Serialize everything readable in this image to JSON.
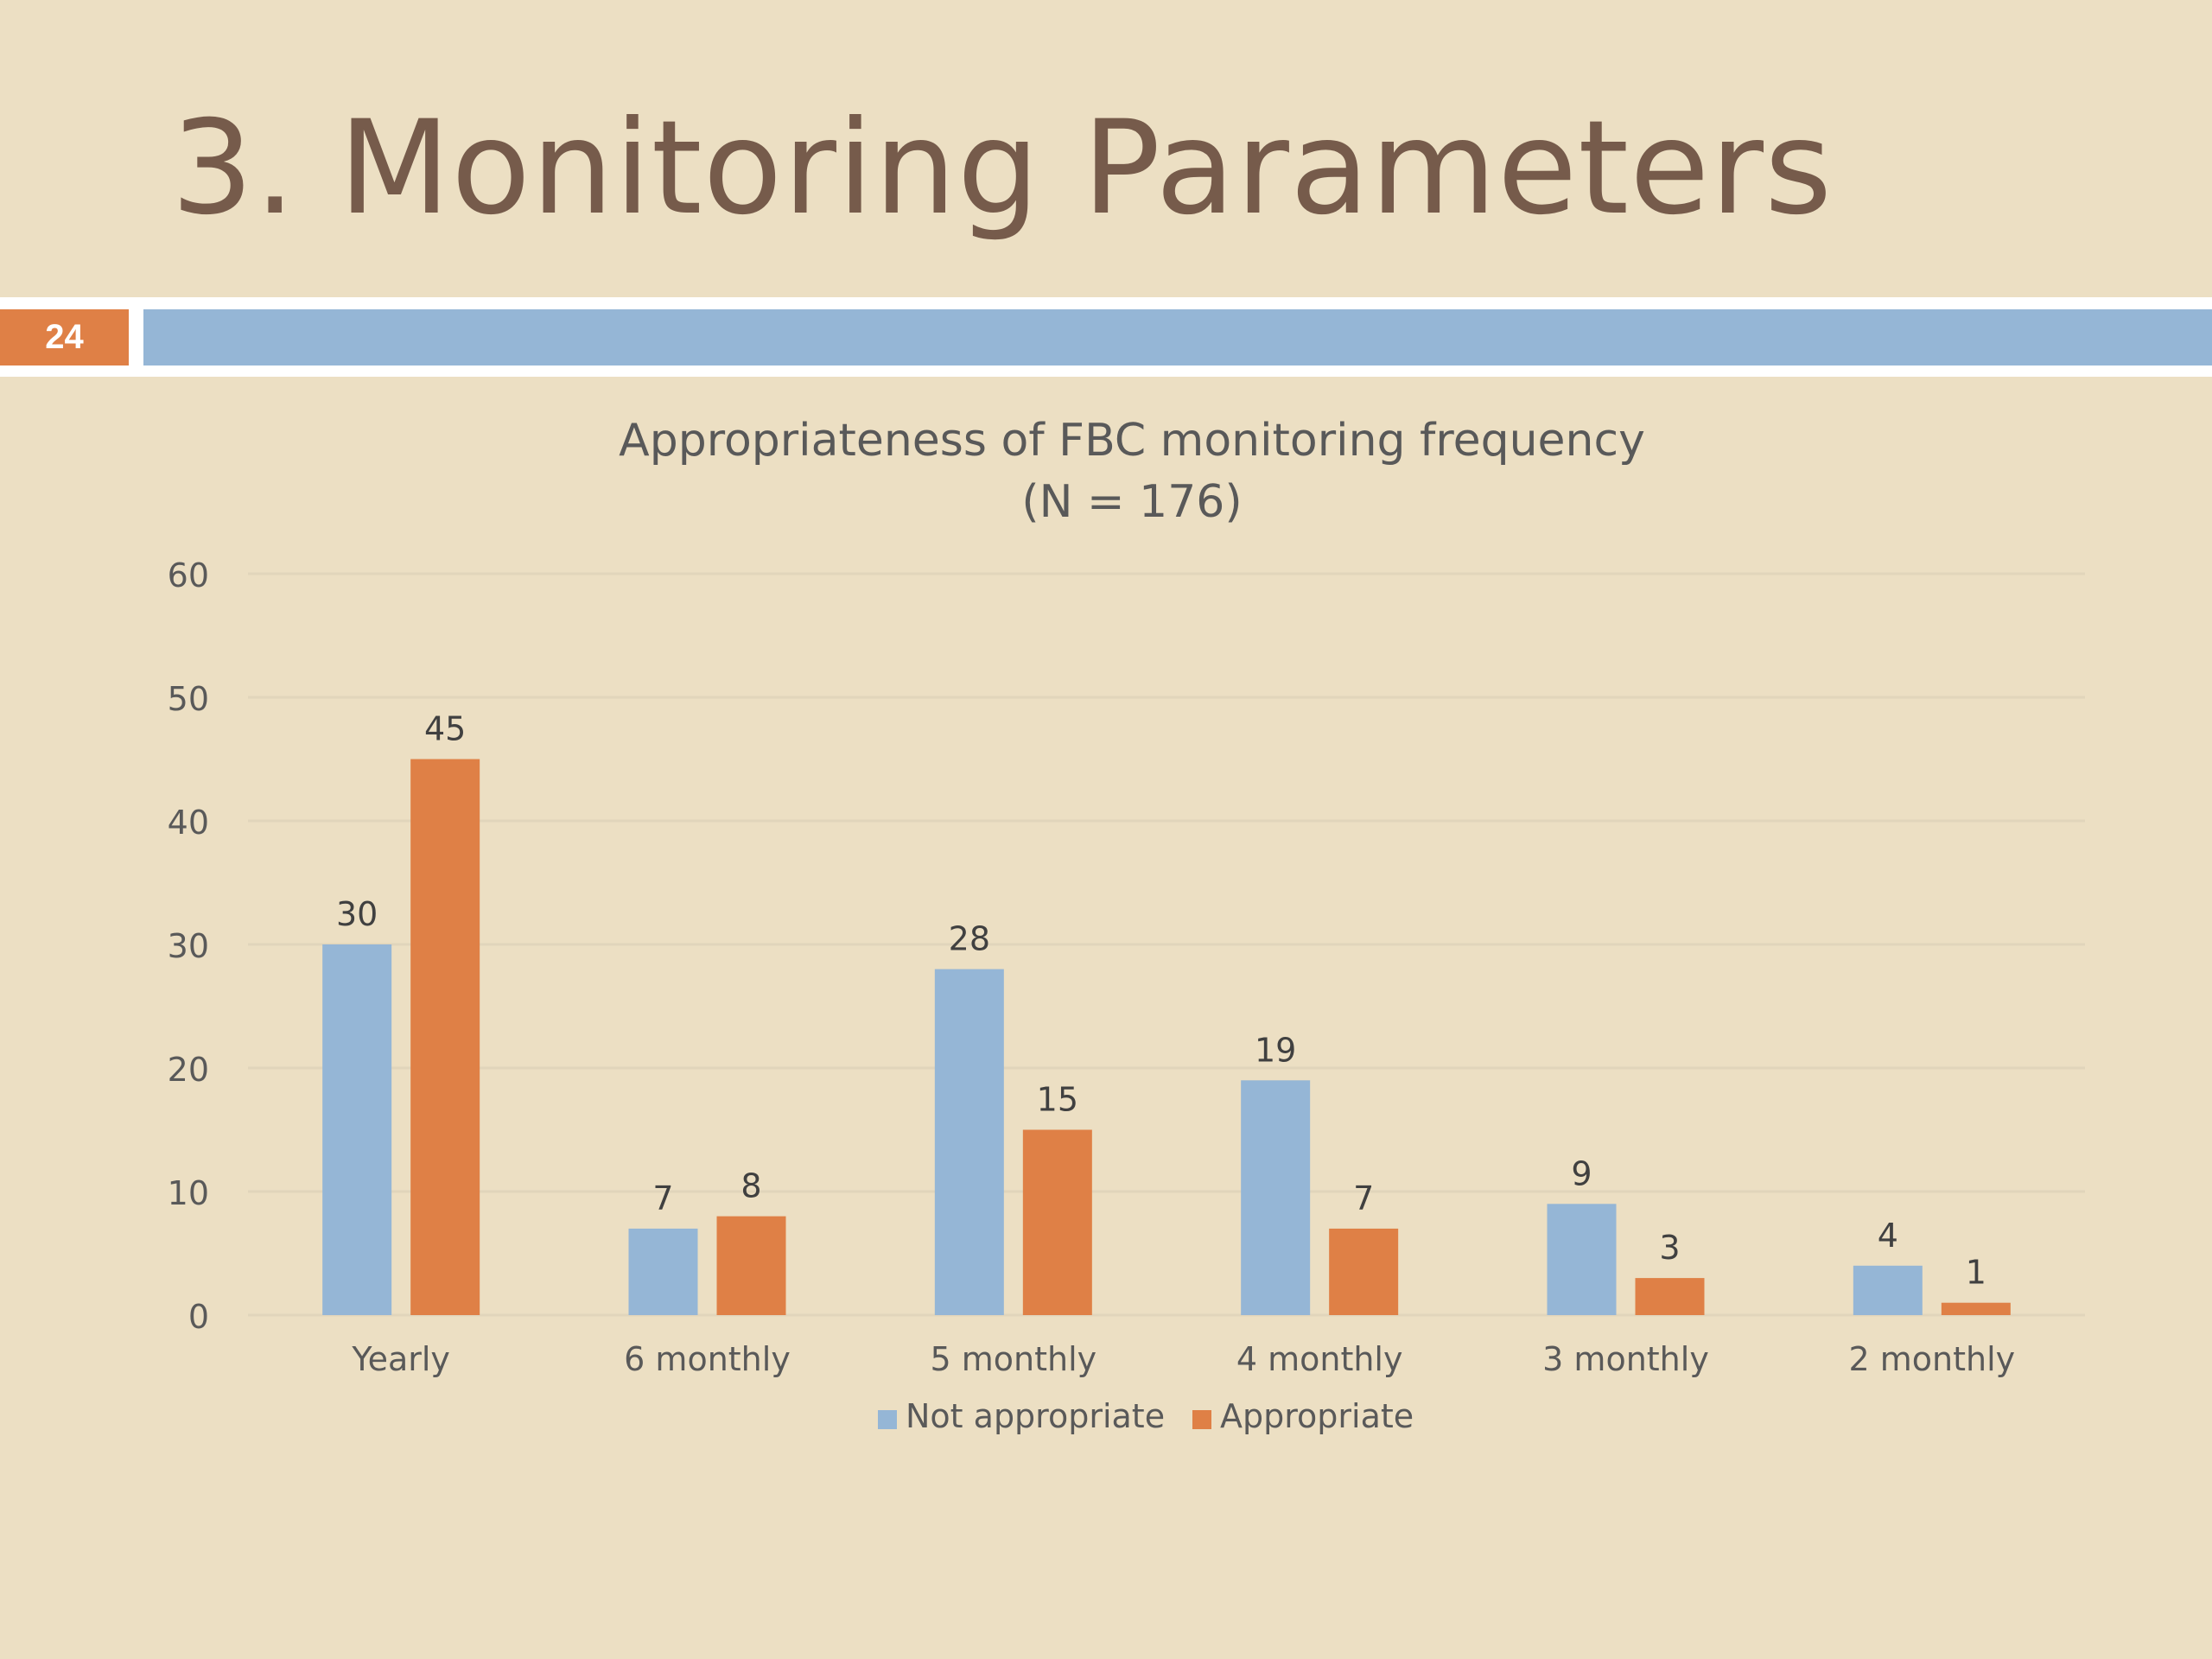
{
  "slide": {
    "title": "3. Monitoring Parameters",
    "page_number": "24"
  },
  "colors": {
    "background": "#ecdfc3",
    "title": "#765b4b",
    "accent_orange": "#df8046",
    "accent_blue": "#95b6d6"
  },
  "chart_data": {
    "type": "bar",
    "title": "Appropriateness of FBC monitoring frequency",
    "subtitle": "(N = 176)",
    "categories": [
      "Yearly",
      "6 monthly",
      "5 monthly",
      "4 monthly",
      "3 monthly",
      "2 monthly"
    ],
    "series": [
      {
        "name": "Not appropriate",
        "values": [
          30,
          7,
          28,
          19,
          9,
          4
        ],
        "color": "#95b6d6"
      },
      {
        "name": "Appropriate",
        "values": [
          45,
          8,
          15,
          7,
          3,
          1
        ],
        "color": "#df8046"
      }
    ],
    "ylim": [
      0,
      60
    ],
    "yticks": [
      0,
      10,
      20,
      30,
      40,
      50,
      60
    ],
    "grid": true,
    "legend": "bottom",
    "data_labels": true
  }
}
